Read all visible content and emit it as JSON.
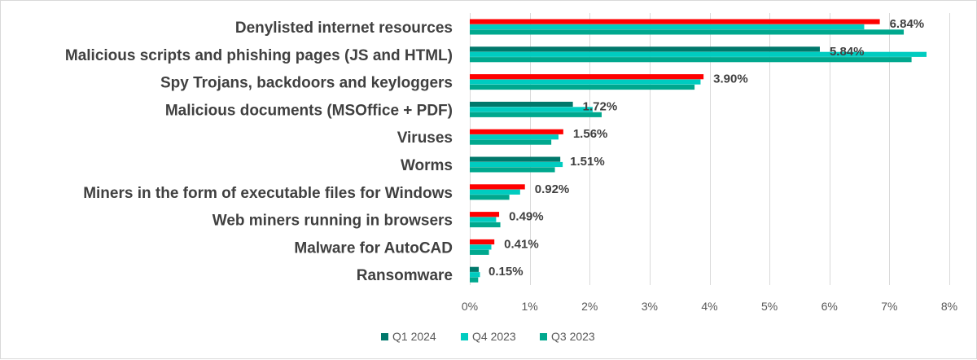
{
  "chart_data": {
    "type": "bar",
    "orientation": "horizontal",
    "categories": [
      "Denylisted internet resources",
      "Malicious scripts and phishing pages (JS and HTML)",
      "Spy Trojans, backdoors and keyloggers",
      "Malicious documents (MSOffice + PDF)",
      "Viruses",
      "Worms",
      "Miners in the form of executable files for Windows",
      "Web miners running in browsers",
      "Malware for AutoCAD",
      "Ransomware"
    ],
    "series": [
      {
        "name": "Q1 2024",
        "values": [
          6.84,
          5.84,
          3.9,
          1.72,
          1.56,
          1.51,
          0.92,
          0.49,
          0.41,
          0.15
        ],
        "colors": [
          "#ff0000",
          "#00786b",
          "#ff0000",
          "#00786b",
          "#ff0000",
          "#00786b",
          "#ff0000",
          "#ff0000",
          "#ff0000",
          "#00786b"
        ]
      },
      {
        "name": "Q4 2023",
        "values": [
          6.58,
          7.62,
          3.85,
          2.05,
          1.48,
          1.55,
          0.84,
          0.44,
          0.36,
          0.17
        ]
      },
      {
        "name": "Q3 2023",
        "values": [
          7.24,
          7.37,
          3.75,
          2.2,
          1.36,
          1.42,
          0.66,
          0.51,
          0.32,
          0.14
        ]
      }
    ],
    "data_labels": [
      "6.84%",
      "5.84%",
      "3.90%",
      "1.72%",
      "1.56%",
      "1.51%",
      "0.92%",
      "0.49%",
      "0.41%",
      "0.15%"
    ],
    "x_ticks": [
      "0%",
      "1%",
      "2%",
      "3%",
      "4%",
      "5%",
      "6%",
      "7%",
      "8%"
    ],
    "xlim": [
      0,
      8
    ],
    "grid": true,
    "legend": {
      "placement": "bottom",
      "items": [
        {
          "label": "Q1 2024",
          "color": "#00786b"
        },
        {
          "label": "Q4 2023",
          "color": "#00ccc0"
        },
        {
          "label": "Q3 2023",
          "color": "#00a88e"
        }
      ]
    },
    "series_colors": [
      "#00786b",
      "#00ccc0",
      "#00a88e"
    ]
  }
}
